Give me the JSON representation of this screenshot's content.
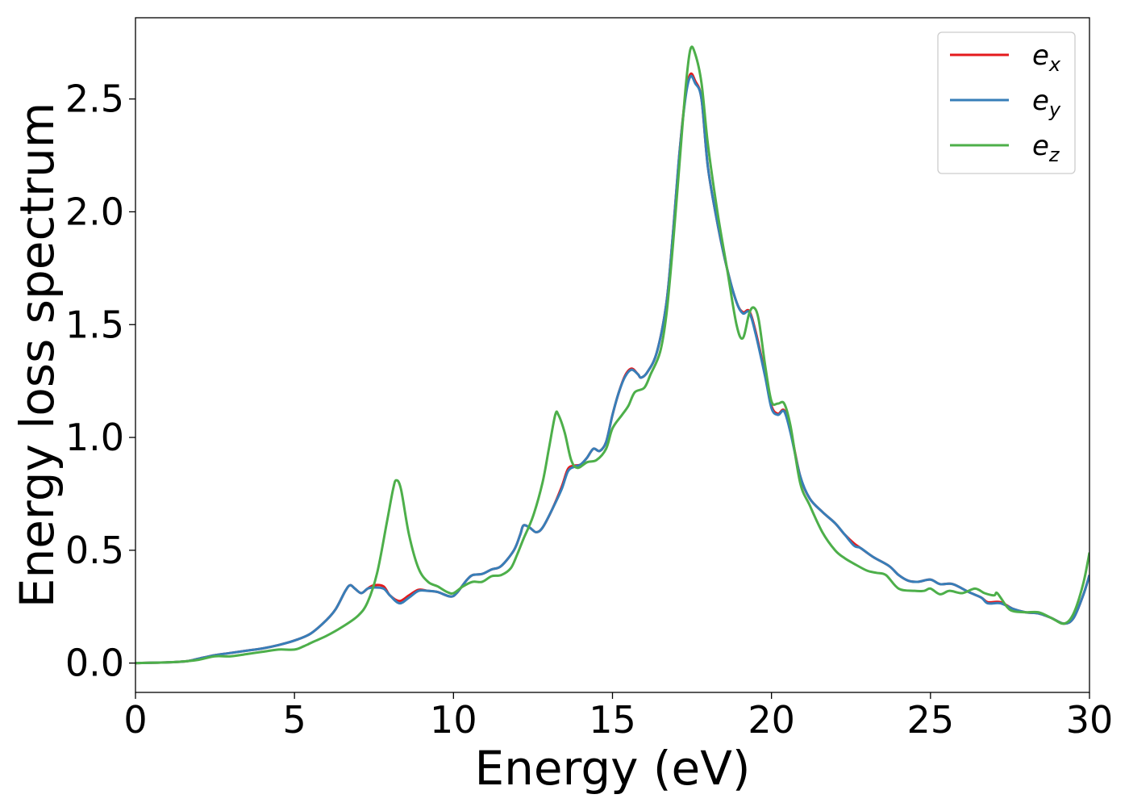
{
  "chart_data": {
    "type": "line",
    "title": "",
    "xlabel": "Energy (eV)",
    "ylabel": "Energy loss spectrum",
    "xlim": [
      0,
      30
    ],
    "ylim": [
      -0.13,
      2.86
    ],
    "xticks": [
      0,
      5,
      10,
      15,
      20,
      25,
      30
    ],
    "xtick_labels": [
      "0",
      "5",
      "10",
      "15",
      "20",
      "25",
      "30"
    ],
    "yticks": [
      0.0,
      0.5,
      1.0,
      1.5,
      2.0,
      2.5
    ],
    "ytick_labels": [
      "0.0",
      "0.5",
      "1.0",
      "1.5",
      "2.0",
      "2.5"
    ],
    "grid": false,
    "legend_position": "top-right",
    "series": [
      {
        "name": "e_x",
        "legend_base": "e",
        "legend_sub": "x",
        "color": "#e41a1c",
        "points": [
          [
            0,
            0
          ],
          [
            1,
            0.003
          ],
          [
            1.6,
            0.008
          ],
          [
            2,
            0.02
          ],
          [
            2.5,
            0.035
          ],
          [
            3,
            0.045
          ],
          [
            3.5,
            0.055
          ],
          [
            4,
            0.065
          ],
          [
            4.5,
            0.08
          ],
          [
            5,
            0.1
          ],
          [
            5.5,
            0.13
          ],
          [
            6,
            0.19
          ],
          [
            6.3,
            0.24
          ],
          [
            6.6,
            0.32
          ],
          [
            6.75,
            0.345
          ],
          [
            6.9,
            0.33
          ],
          [
            7.1,
            0.31
          ],
          [
            7.3,
            0.33
          ],
          [
            7.5,
            0.345
          ],
          [
            7.8,
            0.34
          ],
          [
            8,
            0.3
          ],
          [
            8.3,
            0.275
          ],
          [
            8.6,
            0.3
          ],
          [
            8.9,
            0.325
          ],
          [
            9.2,
            0.32
          ],
          [
            9.5,
            0.315
          ],
          [
            9.9,
            0.295
          ],
          [
            10.1,
            0.31
          ],
          [
            10.4,
            0.365
          ],
          [
            10.6,
            0.39
          ],
          [
            10.9,
            0.395
          ],
          [
            11.2,
            0.415
          ],
          [
            11.5,
            0.43
          ],
          [
            11.9,
            0.5
          ],
          [
            12.1,
            0.57
          ],
          [
            12.2,
            0.61
          ],
          [
            12.4,
            0.6
          ],
          [
            12.6,
            0.58
          ],
          [
            12.8,
            0.6
          ],
          [
            13.1,
            0.68
          ],
          [
            13.4,
            0.78
          ],
          [
            13.6,
            0.86
          ],
          [
            13.8,
            0.875
          ],
          [
            14,
            0.88
          ],
          [
            14.2,
            0.91
          ],
          [
            14.4,
            0.95
          ],
          [
            14.6,
            0.94
          ],
          [
            14.8,
            0.98
          ],
          [
            15,
            1.1
          ],
          [
            15.2,
            1.2
          ],
          [
            15.4,
            1.275
          ],
          [
            15.6,
            1.305
          ],
          [
            15.8,
            1.28
          ],
          [
            15.9,
            1.265
          ],
          [
            16.1,
            1.29
          ],
          [
            16.4,
            1.38
          ],
          [
            16.7,
            1.6
          ],
          [
            16.9,
            1.9
          ],
          [
            17.1,
            2.25
          ],
          [
            17.3,
            2.52
          ],
          [
            17.45,
            2.61
          ],
          [
            17.6,
            2.58
          ],
          [
            17.8,
            2.5
          ],
          [
            18,
            2.2
          ],
          [
            18.3,
            1.95
          ],
          [
            18.6,
            1.75
          ],
          [
            18.9,
            1.6
          ],
          [
            19.1,
            1.555
          ],
          [
            19.3,
            1.56
          ],
          [
            19.5,
            1.47
          ],
          [
            19.8,
            1.28
          ],
          [
            20,
            1.14
          ],
          [
            20.2,
            1.105
          ],
          [
            20.4,
            1.12
          ],
          [
            20.6,
            1.03
          ],
          [
            20.9,
            0.83
          ],
          [
            21.2,
            0.73
          ],
          [
            21.6,
            0.67
          ],
          [
            22,
            0.62
          ],
          [
            22.3,
            0.57
          ],
          [
            22.6,
            0.53
          ],
          [
            22.8,
            0.51
          ],
          [
            23.2,
            0.47
          ],
          [
            23.7,
            0.43
          ],
          [
            24,
            0.39
          ],
          [
            24.3,
            0.365
          ],
          [
            24.6,
            0.36
          ],
          [
            25,
            0.37
          ],
          [
            25.3,
            0.35
          ],
          [
            25.7,
            0.35
          ],
          [
            26.2,
            0.315
          ],
          [
            26.6,
            0.29
          ],
          [
            26.8,
            0.27
          ],
          [
            27.2,
            0.27
          ],
          [
            27.6,
            0.24
          ],
          [
            28,
            0.225
          ],
          [
            28.4,
            0.22
          ],
          [
            28.8,
            0.2
          ],
          [
            29.2,
            0.175
          ],
          [
            29.5,
            0.2
          ],
          [
            29.8,
            0.3
          ],
          [
            30,
            0.39
          ]
        ]
      },
      {
        "name": "e_y",
        "legend_base": "e",
        "legend_sub": "y",
        "color": "#377eb8",
        "points": [
          [
            0,
            0
          ],
          [
            1,
            0.003
          ],
          [
            1.6,
            0.008
          ],
          [
            2,
            0.02
          ],
          [
            2.5,
            0.035
          ],
          [
            3,
            0.045
          ],
          [
            3.5,
            0.055
          ],
          [
            4,
            0.065
          ],
          [
            4.5,
            0.08
          ],
          [
            5,
            0.1
          ],
          [
            5.5,
            0.13
          ],
          [
            6,
            0.19
          ],
          [
            6.3,
            0.24
          ],
          [
            6.6,
            0.32
          ],
          [
            6.75,
            0.345
          ],
          [
            6.9,
            0.33
          ],
          [
            7.1,
            0.31
          ],
          [
            7.3,
            0.33
          ],
          [
            7.5,
            0.335
          ],
          [
            7.8,
            0.33
          ],
          [
            8,
            0.3
          ],
          [
            8.3,
            0.265
          ],
          [
            8.6,
            0.29
          ],
          [
            8.9,
            0.32
          ],
          [
            9.2,
            0.32
          ],
          [
            9.5,
            0.315
          ],
          [
            9.9,
            0.295
          ],
          [
            10.1,
            0.31
          ],
          [
            10.4,
            0.365
          ],
          [
            10.6,
            0.39
          ],
          [
            10.9,
            0.395
          ],
          [
            11.2,
            0.415
          ],
          [
            11.5,
            0.43
          ],
          [
            11.9,
            0.5
          ],
          [
            12.1,
            0.57
          ],
          [
            12.2,
            0.61
          ],
          [
            12.4,
            0.6
          ],
          [
            12.6,
            0.58
          ],
          [
            12.8,
            0.6
          ],
          [
            13.1,
            0.68
          ],
          [
            13.4,
            0.77
          ],
          [
            13.6,
            0.85
          ],
          [
            13.8,
            0.87
          ],
          [
            14,
            0.88
          ],
          [
            14.2,
            0.91
          ],
          [
            14.4,
            0.95
          ],
          [
            14.6,
            0.94
          ],
          [
            14.8,
            0.98
          ],
          [
            15,
            1.1
          ],
          [
            15.2,
            1.2
          ],
          [
            15.4,
            1.27
          ],
          [
            15.6,
            1.3
          ],
          [
            15.8,
            1.28
          ],
          [
            15.9,
            1.265
          ],
          [
            16.1,
            1.29
          ],
          [
            16.4,
            1.38
          ],
          [
            16.7,
            1.6
          ],
          [
            16.9,
            1.9
          ],
          [
            17.1,
            2.25
          ],
          [
            17.3,
            2.51
          ],
          [
            17.45,
            2.6
          ],
          [
            17.6,
            2.57
          ],
          [
            17.8,
            2.5
          ],
          [
            18,
            2.2
          ],
          [
            18.3,
            1.95
          ],
          [
            18.6,
            1.75
          ],
          [
            18.9,
            1.6
          ],
          [
            19.1,
            1.55
          ],
          [
            19.3,
            1.555
          ],
          [
            19.5,
            1.46
          ],
          [
            19.8,
            1.27
          ],
          [
            20,
            1.13
          ],
          [
            20.2,
            1.1
          ],
          [
            20.4,
            1.115
          ],
          [
            20.6,
            1.02
          ],
          [
            20.9,
            0.83
          ],
          [
            21.2,
            0.73
          ],
          [
            21.6,
            0.67
          ],
          [
            22,
            0.62
          ],
          [
            22.3,
            0.57
          ],
          [
            22.6,
            0.52
          ],
          [
            22.8,
            0.51
          ],
          [
            23.2,
            0.47
          ],
          [
            23.7,
            0.43
          ],
          [
            24,
            0.39
          ],
          [
            24.3,
            0.365
          ],
          [
            24.6,
            0.36
          ],
          [
            25,
            0.37
          ],
          [
            25.3,
            0.35
          ],
          [
            25.7,
            0.35
          ],
          [
            26.2,
            0.315
          ],
          [
            26.6,
            0.29
          ],
          [
            26.8,
            0.265
          ],
          [
            27.2,
            0.265
          ],
          [
            27.6,
            0.24
          ],
          [
            28,
            0.225
          ],
          [
            28.4,
            0.22
          ],
          [
            28.8,
            0.2
          ],
          [
            29.2,
            0.175
          ],
          [
            29.5,
            0.2
          ],
          [
            29.8,
            0.3
          ],
          [
            30,
            0.39
          ]
        ]
      },
      {
        "name": "e_z",
        "legend_base": "e",
        "legend_sub": "z",
        "color": "#4daf4a",
        "points": [
          [
            0,
            0
          ],
          [
            1,
            0.003
          ],
          [
            1.6,
            0.008
          ],
          [
            2,
            0.015
          ],
          [
            2.5,
            0.03
          ],
          [
            3,
            0.03
          ],
          [
            3.5,
            0.04
          ],
          [
            4,
            0.05
          ],
          [
            4.5,
            0.06
          ],
          [
            5,
            0.06
          ],
          [
            5.3,
            0.075
          ],
          [
            5.6,
            0.095
          ],
          [
            6,
            0.12
          ],
          [
            6.5,
            0.16
          ],
          [
            7,
            0.21
          ],
          [
            7.3,
            0.27
          ],
          [
            7.6,
            0.4
          ],
          [
            7.9,
            0.62
          ],
          [
            8.1,
            0.77
          ],
          [
            8.2,
            0.81
          ],
          [
            8.35,
            0.77
          ],
          [
            8.6,
            0.57
          ],
          [
            8.9,
            0.42
          ],
          [
            9.2,
            0.36
          ],
          [
            9.5,
            0.34
          ],
          [
            9.8,
            0.315
          ],
          [
            10,
            0.31
          ],
          [
            10.3,
            0.34
          ],
          [
            10.6,
            0.36
          ],
          [
            10.9,
            0.36
          ],
          [
            11.2,
            0.385
          ],
          [
            11.5,
            0.39
          ],
          [
            11.8,
            0.42
          ],
          [
            12,
            0.48
          ],
          [
            12.2,
            0.55
          ],
          [
            12.5,
            0.65
          ],
          [
            12.8,
            0.8
          ],
          [
            13,
            0.95
          ],
          [
            13.2,
            1.1
          ],
          [
            13.3,
            1.1
          ],
          [
            13.5,
            1.02
          ],
          [
            13.7,
            0.9
          ],
          [
            13.9,
            0.865
          ],
          [
            14.2,
            0.89
          ],
          [
            14.5,
            0.9
          ],
          [
            14.8,
            0.95
          ],
          [
            15,
            1.04
          ],
          [
            15.3,
            1.1
          ],
          [
            15.5,
            1.14
          ],
          [
            15.7,
            1.2
          ],
          [
            16,
            1.22
          ],
          [
            16.2,
            1.28
          ],
          [
            16.5,
            1.38
          ],
          [
            16.7,
            1.55
          ],
          [
            16.9,
            1.85
          ],
          [
            17.1,
            2.2
          ],
          [
            17.3,
            2.55
          ],
          [
            17.45,
            2.72
          ],
          [
            17.6,
            2.7
          ],
          [
            17.8,
            2.57
          ],
          [
            18,
            2.3
          ],
          [
            18.3,
            2.0
          ],
          [
            18.6,
            1.75
          ],
          [
            18.9,
            1.5
          ],
          [
            19.1,
            1.44
          ],
          [
            19.3,
            1.55
          ],
          [
            19.45,
            1.575
          ],
          [
            19.6,
            1.52
          ],
          [
            19.8,
            1.32
          ],
          [
            20,
            1.16
          ],
          [
            20.2,
            1.15
          ],
          [
            20.4,
            1.15
          ],
          [
            20.6,
            1.05
          ],
          [
            20.9,
            0.8
          ],
          [
            21.2,
            0.7
          ],
          [
            21.6,
            0.58
          ],
          [
            22,
            0.5
          ],
          [
            22.3,
            0.465
          ],
          [
            22.6,
            0.44
          ],
          [
            23,
            0.41
          ],
          [
            23.3,
            0.4
          ],
          [
            23.6,
            0.39
          ],
          [
            24,
            0.33
          ],
          [
            24.5,
            0.32
          ],
          [
            24.8,
            0.32
          ],
          [
            25,
            0.33
          ],
          [
            25.3,
            0.305
          ],
          [
            25.6,
            0.32
          ],
          [
            26,
            0.31
          ],
          [
            26.4,
            0.33
          ],
          [
            26.7,
            0.31
          ],
          [
            27,
            0.3
          ],
          [
            27.1,
            0.31
          ],
          [
            27.4,
            0.25
          ],
          [
            27.6,
            0.23
          ],
          [
            28,
            0.225
          ],
          [
            28.4,
            0.225
          ],
          [
            28.8,
            0.2
          ],
          [
            29.2,
            0.175
          ],
          [
            29.5,
            0.22
          ],
          [
            29.8,
            0.35
          ],
          [
            30,
            0.49
          ]
        ]
      }
    ]
  }
}
